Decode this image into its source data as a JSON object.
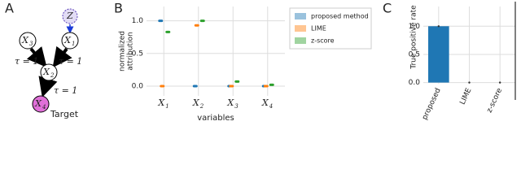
{
  "diagram": {
    "panel_label": "A",
    "nodes": [
      {
        "label": "Z",
        "sub": ""
      },
      {
        "label": "X",
        "sub": "3"
      },
      {
        "label": "X",
        "sub": "1"
      },
      {
        "label": "X",
        "sub": "2"
      },
      {
        "label": "X",
        "sub": "4"
      }
    ],
    "edge_labels": [
      "τ = 1",
      "τ = 1",
      "τ = 1"
    ],
    "target_label": "Target"
  },
  "chart_data": [
    {
      "type": "strip",
      "panel_label": "B",
      "y_label": [
        "normalized",
        "attribution"
      ],
      "x_label": "variables",
      "categories": [
        {
          "label": "X",
          "sub": "1"
        },
        {
          "label": "X",
          "sub": "2"
        },
        {
          "label": "X",
          "sub": "3"
        },
        {
          "label": "X",
          "sub": "4"
        }
      ],
      "series": [
        {
          "name": "proposed method",
          "color": "#1f77b4",
          "values": [
            1.0,
            0,
            0,
            0
          ]
        },
        {
          "name": "LIME",
          "color": "#ff7f0e",
          "values": [
            0,
            0.93,
            0,
            0
          ]
        },
        {
          "name": "z-score",
          "color": "#2ca02c",
          "values": [
            0.83,
            1.0,
            0.07,
            0.02
          ]
        }
      ],
      "ylim": [
        -0.15,
        1.22
      ],
      "yticks": [
        {
          "value": 0,
          "label": "0.0"
        },
        {
          "value": 0.5,
          "label": "0.5"
        },
        {
          "value": 1,
          "label": "1.0"
        }
      ],
      "grid": true
    },
    {
      "type": "bar",
      "panel_label": "C",
      "y_label": "True positive rate",
      "categories": [
        "proposed",
        "LIME",
        "z-score"
      ],
      "values": [
        1.0,
        0,
        0
      ],
      "color": "#1f77b4",
      "ylim": [
        -0.02,
        1.35
      ],
      "yticks": [
        {
          "value": 0,
          "label": "0.0"
        },
        {
          "value": 0.5,
          "label": "0.5"
        },
        {
          "value": 1,
          "label": "1.0"
        }
      ],
      "grid": true
    }
  ]
}
